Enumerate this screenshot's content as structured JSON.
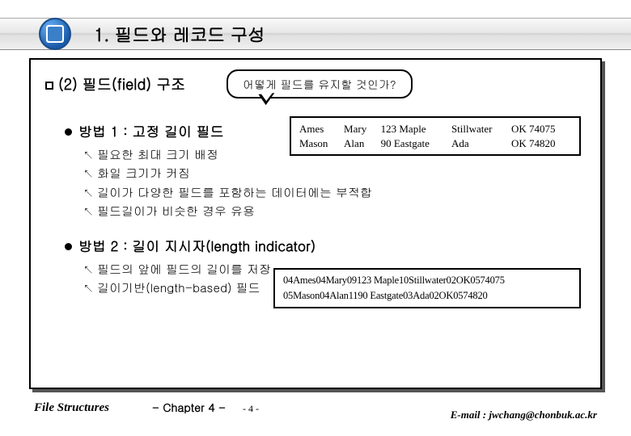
{
  "header": {
    "title": "1. 필드와 레코드 구성"
  },
  "subheading": "(2) 필드(field) 구조",
  "speech": "어떻게 필드를 유지할 것인가?",
  "method1": {
    "title": "방법 1 : 고정 길이 필드",
    "items": [
      "필요한 최대 크기 배정",
      "화일 크기가 커짐",
      "길이가 다양한 필드를 포함하는 데이터에는 부적합",
      "필드길이가 비슷한 경우 유용"
    ]
  },
  "table": {
    "rows": [
      [
        "Ames",
        "Mary",
        "123 Maple",
        "Stillwater",
        "OK 74075"
      ],
      [
        "Mason",
        "Alan",
        "90 Eastgate",
        "Ada",
        "OK 74820"
      ]
    ]
  },
  "method2": {
    "title": "방법 2 : 길이 지시자(length indicator)",
    "items": [
      "필드의 앞에 필드의 길이를 저장",
      "길이기반(length-based) 필드"
    ]
  },
  "datastrings": [
    "04Ames04Mary09123 Maple10Stillwater02OK0574075",
    "05Mason04Alan1190 Eastgate03Ada02OK0574820"
  ],
  "footer": {
    "left": "File Structures",
    "chapter": "- Chapter 4 -",
    "page": "- 4 -",
    "email": "E-mail : jwchang@chonbuk.ac.kr"
  }
}
